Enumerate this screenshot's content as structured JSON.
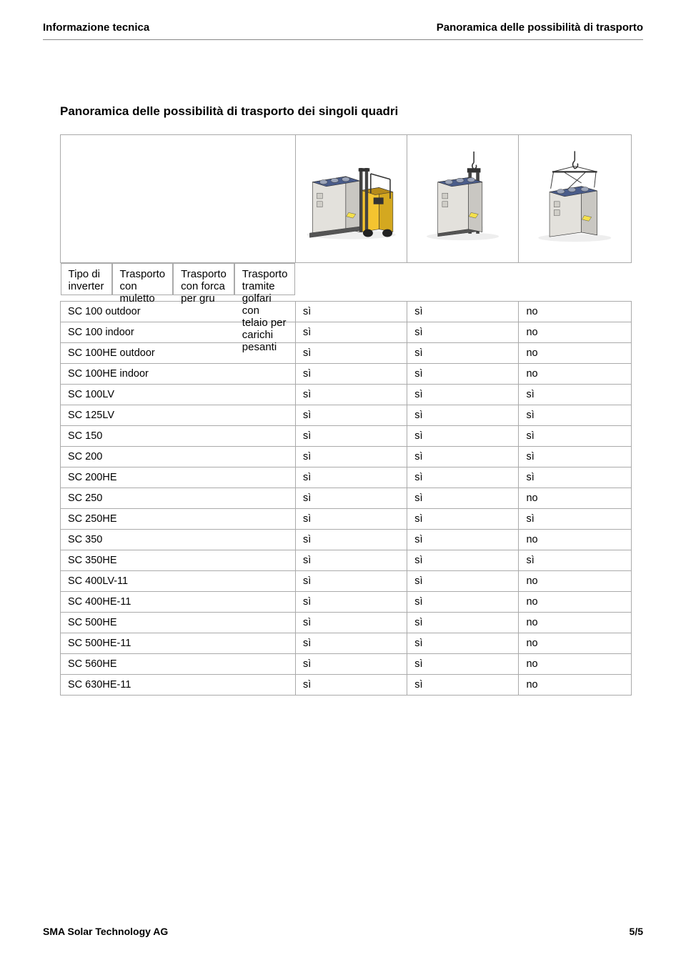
{
  "header": {
    "left": "Informazione tecnica",
    "right": "Panoramica delle possibilità di trasporto"
  },
  "section_title": "Panoramica delle possibilità di trasporto dei singoli quadri",
  "table": {
    "columns": [
      "Tipo di inverter",
      "Trasporto con muletto",
      "Trasporto con forca per gru",
      "Trasporto tramite golfari con telaio per carichi pesanti"
    ],
    "rows": [
      [
        "SC 100 outdoor",
        "sì",
        "sì",
        "no"
      ],
      [
        "SC 100 indoor",
        "sì",
        "sì",
        "no"
      ],
      [
        "SC 100HE outdoor",
        "sì",
        "sì",
        "no"
      ],
      [
        "SC 100HE indoor",
        "sì",
        "sì",
        "no"
      ],
      [
        "SC 100LV",
        "sì",
        "sì",
        "sì"
      ],
      [
        "SC 125LV",
        "sì",
        "sì",
        "sì"
      ],
      [
        "SC 150",
        "sì",
        "sì",
        "sì"
      ],
      [
        "SC 200",
        "sì",
        "sì",
        "sì"
      ],
      [
        "SC 200HE",
        "sì",
        "sì",
        "sì"
      ],
      [
        "SC 250",
        "sì",
        "sì",
        "no"
      ],
      [
        "SC 250HE",
        "sì",
        "sì",
        "sì"
      ],
      [
        "SC 350",
        "sì",
        "sì",
        "no"
      ],
      [
        "SC 350HE",
        "sì",
        "sì",
        "sì"
      ],
      [
        "SC 400LV-11",
        "sì",
        "sì",
        "no"
      ],
      [
        "SC 400HE-11",
        "sì",
        "sì",
        "no"
      ],
      [
        "SC 500HE",
        "sì",
        "sì",
        "no"
      ],
      [
        "SC 500HE-11",
        "sì",
        "sì",
        "no"
      ],
      [
        "SC 560HE",
        "sì",
        "sì",
        "no"
      ],
      [
        "SC 630HE-11",
        "sì",
        "sì",
        "no"
      ]
    ]
  },
  "illustrations": {
    "colors": {
      "cabinet_body": "#e3e1dc",
      "cabinet_dark": "#c9c7c2",
      "cabinet_panel": "#b8b6b1",
      "cabinet_top": "#4a5c8a",
      "forklift": "#f4c430",
      "forklift_dark": "#b58a1a",
      "fork": "#444",
      "line": "#333"
    }
  },
  "footer": {
    "left": "SMA Solar Technology AG",
    "right": "5/5"
  }
}
